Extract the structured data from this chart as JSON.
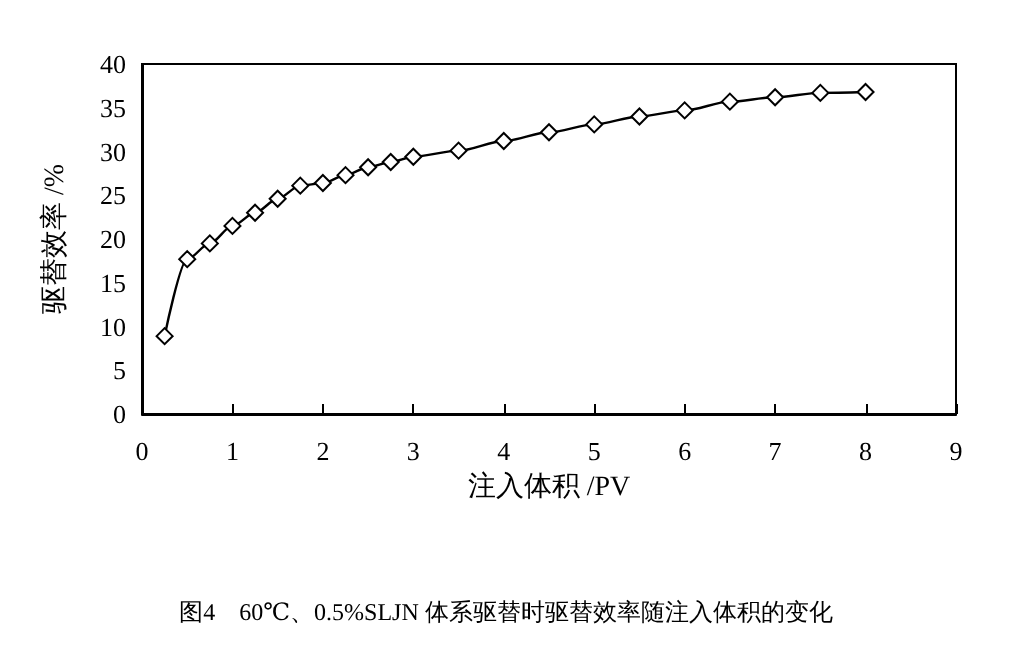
{
  "chart_data": {
    "type": "line",
    "xlabel": "注入体积 /PV",
    "ylabel": "驱替效率 /%",
    "x": [
      0.25,
      0.5,
      0.75,
      1,
      1.25,
      1.5,
      1.75,
      2,
      2.25,
      2.5,
      2.75,
      3,
      3.5,
      4,
      4.5,
      5,
      5.5,
      6,
      6.5,
      7,
      7.5,
      8
    ],
    "series": [
      {
        "color": "#000000",
        "values": [
          8.9,
          17.7,
          19.5,
          21.5,
          23.0,
          24.6,
          26.1,
          26.4,
          27.3,
          28.2,
          28.8,
          29.4,
          30.1,
          31.2,
          32.2,
          33.1,
          34.0,
          34.7,
          35.7,
          36.2,
          36.7,
          36.8
        ]
      }
    ],
    "xlim": [
      0,
      9
    ],
    "xticks": [
      0,
      1,
      2,
      3,
      4,
      5,
      6,
      7,
      8,
      9
    ],
    "ylim": [
      0,
      40
    ],
    "yticks": [
      0,
      5,
      10,
      15,
      20,
      25,
      30,
      35,
      40
    ],
    "marker": "diamond",
    "line_style": "solid",
    "grid": false,
    "annotations": [
      "图4　60℃、0.5%SLJN 体系驱替时驱替效率随注入体积的变化"
    ]
  }
}
